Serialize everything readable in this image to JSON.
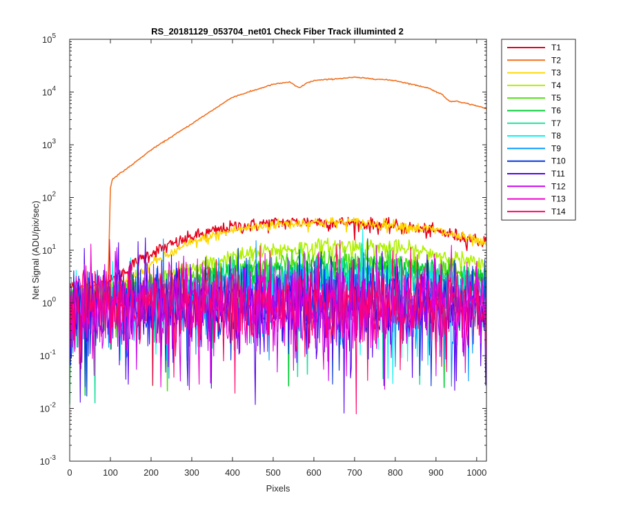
{
  "chart_data": {
    "type": "line",
    "title": "RS_20181129_053704_net01   Check Fiber     Track illuminted 2",
    "xlabel": "Pixels",
    "ylabel": "Net Signal (ADU/pix/sec)",
    "xlim": [
      0,
      1024
    ],
    "ylim_log10": [
      -3,
      5
    ],
    "y_scale": "log",
    "grid": false,
    "legend_position": "outside-top-right",
    "x_ticks": [
      {
        "value": 0,
        "label": "0"
      },
      {
        "value": 100,
        "label": "100"
      },
      {
        "value": 200,
        "label": "200"
      },
      {
        "value": 300,
        "label": "300"
      },
      {
        "value": 400,
        "label": "400"
      },
      {
        "value": 500,
        "label": "500"
      },
      {
        "value": 600,
        "label": "600"
      },
      {
        "value": 700,
        "label": "700"
      },
      {
        "value": 800,
        "label": "800"
      },
      {
        "value": 900,
        "label": "900"
      },
      {
        "value": 1000,
        "label": "1000"
      }
    ],
    "y_ticks": [
      {
        "exp": -3,
        "base": "10",
        "sup": "-3"
      },
      {
        "exp": -2,
        "base": "10",
        "sup": "-2"
      },
      {
        "exp": -1,
        "base": "10",
        "sup": "-1"
      },
      {
        "exp": 0,
        "base": "10",
        "sup": "0"
      },
      {
        "exp": 1,
        "base": "10",
        "sup": "1"
      },
      {
        "exp": 2,
        "base": "10",
        "sup": "2"
      },
      {
        "exp": 3,
        "base": "10",
        "sup": "3"
      },
      {
        "exp": 4,
        "base": "10",
        "sup": "4"
      },
      {
        "exp": 5,
        "base": "10",
        "sup": "5"
      }
    ],
    "series": [
      {
        "name": "T1",
        "color": "#e6001a",
        "noise": 0.05,
        "points": [
          [
            0,
            2
          ],
          [
            80,
            2.2
          ],
          [
            100,
            2.5
          ],
          [
            150,
            5
          ],
          [
            200,
            9
          ],
          [
            300,
            18
          ],
          [
            400,
            28
          ],
          [
            500,
            33
          ],
          [
            600,
            35
          ],
          [
            700,
            33
          ],
          [
            800,
            29
          ],
          [
            900,
            23
          ],
          [
            1000,
            16
          ],
          [
            1024,
            14
          ]
        ]
      },
      {
        "name": "T2",
        "color": "#f07020",
        "noise": 0.004,
        "points": [
          [
            0,
            2
          ],
          [
            90,
            2.2
          ],
          [
            95,
            3
          ],
          [
            100,
            150
          ],
          [
            105,
            225
          ],
          [
            150,
            400
          ],
          [
            200,
            800
          ],
          [
            300,
            2500
          ],
          [
            400,
            8000
          ],
          [
            500,
            14000
          ],
          [
            540,
            15500
          ],
          [
            555,
            13000
          ],
          [
            565,
            12000
          ],
          [
            580,
            14500
          ],
          [
            600,
            16500
          ],
          [
            700,
            19000
          ],
          [
            800,
            16500
          ],
          [
            880,
            12000
          ],
          [
            915,
            9000
          ],
          [
            935,
            6500
          ],
          [
            950,
            6800
          ],
          [
            970,
            6200
          ],
          [
            1000,
            5500
          ],
          [
            1024,
            4800
          ]
        ]
      },
      {
        "name": "T3",
        "color": "#ffd700",
        "noise": 0.04,
        "points": [
          [
            0,
            1.5
          ],
          [
            100,
            1.8
          ],
          [
            150,
            3
          ],
          [
            200,
            5.5
          ],
          [
            300,
            14
          ],
          [
            400,
            24
          ],
          [
            500,
            31
          ],
          [
            600,
            34
          ],
          [
            700,
            34
          ],
          [
            800,
            30
          ],
          [
            900,
            24
          ],
          [
            1000,
            15
          ],
          [
            1024,
            12
          ]
        ]
      },
      {
        "name": "T4",
        "color": "#b0f000",
        "noise": 0.07,
        "points": [
          [
            0,
            1.4
          ],
          [
            100,
            1.6
          ],
          [
            200,
            2.6
          ],
          [
            300,
            4.5
          ],
          [
            400,
            7.5
          ],
          [
            500,
            10
          ],
          [
            600,
            11.5
          ],
          [
            700,
            12
          ],
          [
            800,
            11
          ],
          [
            900,
            8.5
          ],
          [
            1000,
            5.5
          ],
          [
            1024,
            4.5
          ]
        ]
      },
      {
        "name": "T5",
        "color": "#50e010",
        "noise": 0.1,
        "points": [
          [
            0,
            1.3
          ],
          [
            100,
            1.4
          ],
          [
            200,
            2
          ],
          [
            300,
            3
          ],
          [
            400,
            4.2
          ],
          [
            500,
            5.3
          ],
          [
            600,
            6
          ],
          [
            700,
            6
          ],
          [
            800,
            5.5
          ],
          [
            900,
            4.5
          ],
          [
            1000,
            3.2
          ],
          [
            1024,
            2.8
          ]
        ]
      },
      {
        "name": "T6",
        "color": "#00cc33",
        "noise": 0.13,
        "points": [
          [
            0,
            1.2
          ],
          [
            200,
            1.7
          ],
          [
            400,
            3.2
          ],
          [
            600,
            4.3
          ],
          [
            800,
            4
          ],
          [
            1000,
            2.6
          ],
          [
            1024,
            2.4
          ]
        ]
      },
      {
        "name": "T7",
        "color": "#20e0a0",
        "noise": 0.15,
        "points": [
          [
            0,
            1.1
          ],
          [
            200,
            1.5
          ],
          [
            400,
            2.6
          ],
          [
            600,
            3.4
          ],
          [
            800,
            3.2
          ],
          [
            1000,
            2.2
          ],
          [
            1024,
            2
          ]
        ]
      },
      {
        "name": "T8",
        "color": "#00f0f0",
        "noise": 0.28,
        "points": [
          [
            0,
            1
          ],
          [
            200,
            1.2
          ],
          [
            500,
            1.8
          ],
          [
            700,
            2
          ],
          [
            900,
            1.6
          ],
          [
            1024,
            1.4
          ]
        ]
      },
      {
        "name": "T9",
        "color": "#0099ff",
        "noise": 0.32,
        "points": [
          [
            0,
            0.9
          ],
          [
            300,
            1.1
          ],
          [
            600,
            1.3
          ],
          [
            1024,
            1
          ]
        ]
      },
      {
        "name": "T10",
        "color": "#0033dd",
        "noise": 0.36,
        "points": [
          [
            0,
            0.9
          ],
          [
            500,
            1
          ],
          [
            1024,
            0.9
          ]
        ]
      },
      {
        "name": "T11",
        "color": "#5500ee",
        "noise": 0.38,
        "points": [
          [
            0,
            0.9
          ],
          [
            500,
            1
          ],
          [
            1024,
            0.9
          ]
        ]
      },
      {
        "name": "T12",
        "color": "#cc00ee",
        "noise": 0.38,
        "points": [
          [
            0,
            0.9
          ],
          [
            500,
            1
          ],
          [
            1024,
            0.9
          ]
        ]
      },
      {
        "name": "T13",
        "color": "#ee00cc",
        "noise": 0.38,
        "points": [
          [
            0,
            0.9
          ],
          [
            500,
            1
          ],
          [
            1024,
            0.9
          ]
        ]
      },
      {
        "name": "T14",
        "color": "#ff0066",
        "noise": 0.38,
        "points": [
          [
            0,
            0.9
          ],
          [
            500,
            1
          ],
          [
            1024,
            0.9
          ]
        ]
      }
    ]
  }
}
